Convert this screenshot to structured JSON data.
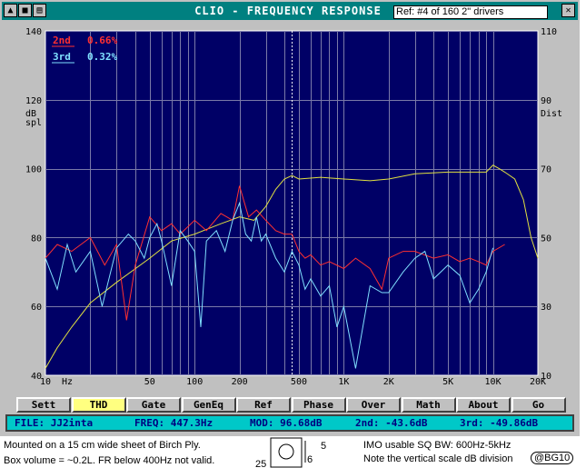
{
  "window": {
    "title": "CLIO - FREQUENCY RESPONSE",
    "ref_field": "Ref: #4 of 160 2\" drivers",
    "title_buttons": [
      "open-icon",
      "save-icon",
      "print-icon"
    ],
    "close_button": "close-icon"
  },
  "chart": {
    "background": "#000066",
    "legend": [
      {
        "label": "2nd",
        "value": "0.66%",
        "color": "#ff3030"
      },
      {
        "label": "3rd",
        "value": "0.32%",
        "color": "#80e0ff"
      }
    ],
    "left_axis_label_1": "dB",
    "left_axis_label_2": "spl",
    "right_axis_label": "Dist",
    "left_ticks": [
      "140",
      "120",
      "100",
      "80",
      "60",
      "40"
    ],
    "right_ticks": [
      "110",
      "90",
      "70",
      "50",
      "30",
      "10"
    ],
    "x_ticks": [
      {
        "label": "10",
        "f": 10
      },
      {
        "label": "Hz",
        "f": 14
      },
      {
        "label": "50",
        "f": 50
      },
      {
        "label": "100",
        "f": 100
      },
      {
        "label": "200",
        "f": 200
      },
      {
        "label": "500",
        "f": 500
      },
      {
        "label": "1K",
        "f": 1000
      },
      {
        "label": "2K",
        "f": 2000
      },
      {
        "label": "5K",
        "f": 5000
      },
      {
        "label": "10K",
        "f": 10000
      },
      {
        "label": "20K",
        "f": 20000
      }
    ]
  },
  "chart_data": {
    "type": "line",
    "x_scale": "log",
    "xlim": [
      10,
      20000
    ],
    "ylim_left": [
      40,
      140
    ],
    "ylim_right": [
      10,
      110
    ],
    "cursor_freq": 447.3,
    "series": [
      {
        "name": "Frequency response",
        "axis": "left",
        "color": "#e0e040",
        "x": [
          10,
          12,
          15,
          20,
          30,
          50,
          70,
          100,
          150,
          200,
          250,
          300,
          350,
          400,
          450,
          500,
          700,
          1000,
          1500,
          2000,
          3000,
          5000,
          7000,
          9000,
          10000,
          11000,
          12000,
          14000,
          16000,
          18000,
          20000
        ],
        "y": [
          42,
          48,
          54,
          61,
          67,
          74,
          79,
          81,
          84,
          86,
          85,
          89,
          94,
          97,
          98,
          97,
          97.5,
          97,
          96.5,
          97,
          98.5,
          99,
          99,
          99,
          101,
          100,
          99,
          97,
          91,
          80,
          74
        ]
      },
      {
        "name": "2nd",
        "axis": "right",
        "color": "#ff3030",
        "x": [
          10,
          12,
          15,
          20,
          25,
          30,
          35,
          40,
          50,
          60,
          70,
          80,
          100,
          120,
          150,
          180,
          200,
          230,
          260,
          300,
          350,
          400,
          450,
          500,
          550,
          600,
          700,
          800,
          1000,
          1200,
          1500,
          1800,
          2000,
          2500,
          3000,
          4000,
          5000,
          6000,
          7000,
          8000,
          9000,
          10000,
          12000
        ],
        "y": [
          44,
          48,
          46,
          50,
          42,
          48,
          26,
          42,
          56,
          52,
          54,
          51,
          55,
          52,
          57,
          55,
          65,
          56,
          58,
          55,
          52,
          51,
          51,
          46,
          44,
          45,
          42,
          43,
          41,
          44,
          41,
          35,
          44,
          46,
          46,
          44,
          45,
          43,
          44,
          43,
          42,
          46,
          48
        ]
      },
      {
        "name": "3rd",
        "axis": "right",
        "color": "#80e0ff",
        "x": [
          10,
          12,
          14,
          16,
          20,
          24,
          30,
          36,
          40,
          46,
          50,
          56,
          60,
          70,
          80,
          90,
          100,
          110,
          120,
          140,
          160,
          180,
          200,
          220,
          240,
          260,
          280,
          300,
          350,
          400,
          450,
          500,
          550,
          600,
          700,
          800,
          900,
          1000,
          1200,
          1500,
          1800,
          2000,
          2500,
          3000,
          3500,
          4000,
          5000,
          6000,
          7000,
          8000,
          9000,
          10000
        ],
        "y": [
          44,
          35,
          48,
          40,
          46,
          30,
          47,
          51,
          49,
          44,
          50,
          54,
          49,
          36,
          52,
          49,
          46,
          24,
          49,
          52,
          46,
          55,
          60,
          51,
          49,
          56,
          49,
          51,
          44,
          40,
          46,
          42,
          35,
          38,
          33,
          36,
          24,
          30,
          12,
          36,
          34,
          34,
          40,
          44,
          46,
          38,
          42,
          39,
          31,
          35,
          40,
          47
        ]
      }
    ]
  },
  "buttons": [
    {
      "label": "Sett",
      "active": false
    },
    {
      "label": "THD",
      "active": true
    },
    {
      "label": "Gate",
      "active": false
    },
    {
      "label": "GenEq",
      "active": false
    },
    {
      "label": "Ref",
      "active": false
    },
    {
      "label": "Phase",
      "active": false
    },
    {
      "label": "Over",
      "active": false
    },
    {
      "label": "Math",
      "active": false
    },
    {
      "label": "About",
      "active": false
    },
    {
      "label": "Go",
      "active": false
    }
  ],
  "status": {
    "file": "FILE:  JJ2inta",
    "freq": "FREQ:  447.3Hz",
    "mod": "MOD:  96.68dB",
    "second": "2nd:  -43.6dB",
    "third": "3rd:  -49.86dB"
  },
  "notes": {
    "line1_left": "Mounted on a 15 cm wide sheet of Birch Ply.",
    "line2_left": "Box volume = ~0.2L. FR below 400Hz not valid.",
    "line1_right": "IMO usable SQ BW:  600Hz-5kHz",
    "line2_right": "Note the vertical scale dB division",
    "badge": "@BG10",
    "dia_5": "5",
    "dia_6": "6",
    "dia_25": "25"
  }
}
